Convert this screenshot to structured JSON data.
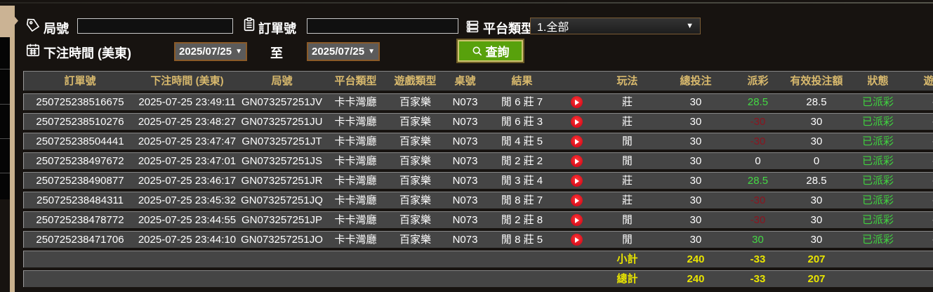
{
  "topbar": {
    "round_label": "局號",
    "round_value": "",
    "order_label": "訂單號",
    "order_value": "",
    "platform_label": "平台類型",
    "platform_selected": "1.全部",
    "bet_time_label": "下注時間 (美東)",
    "date_from": "2025/07/25",
    "to_label": "至",
    "date_to": "2025/07/25",
    "query_label": "查詢"
  },
  "table": {
    "headers": [
      "訂單號",
      "下注時間 (美東)",
      "局號",
      "平台類型",
      "遊戲類型",
      "桌號",
      "結果",
      "",
      "玩法",
      "總投注",
      "派彩",
      "有效投注額",
      "狀態",
      "遊戲"
    ],
    "rows": [
      {
        "order_no": "250725238516675",
        "bet_time": "2025-07-25 23:49:11",
        "round_no": "GN073257251JV",
        "platform": "卡卡灣廳",
        "game_type": "百家樂",
        "table_no": "N073",
        "result": "閒 6 莊 7",
        "bet_side": "莊",
        "total_bet": "30",
        "payout": "28.5",
        "payout_state": "win",
        "valid_bet": "28.5",
        "status": "已派彩",
        "game_extra": "-"
      },
      {
        "order_no": "250725238510276",
        "bet_time": "2025-07-25 23:48:27",
        "round_no": "GN073257251JU",
        "platform": "卡卡灣廳",
        "game_type": "百家樂",
        "table_no": "N073",
        "result": "閒 6 莊 3",
        "bet_side": "莊",
        "total_bet": "30",
        "payout": "-30",
        "payout_state": "loss",
        "valid_bet": "30",
        "status": "已派彩",
        "game_extra": "-"
      },
      {
        "order_no": "250725238504441",
        "bet_time": "2025-07-25 23:47:47",
        "round_no": "GN073257251JT",
        "platform": "卡卡灣廳",
        "game_type": "百家樂",
        "table_no": "N073",
        "result": "閒 4 莊 5",
        "bet_side": "閒",
        "total_bet": "30",
        "payout": "-30",
        "payout_state": "loss",
        "valid_bet": "30",
        "status": "已派彩",
        "game_extra": "-"
      },
      {
        "order_no": "250725238497672",
        "bet_time": "2025-07-25 23:47:01",
        "round_no": "GN073257251JS",
        "platform": "卡卡灣廳",
        "game_type": "百家樂",
        "table_no": "N073",
        "result": "閒 2 莊 2",
        "bet_side": "閒",
        "total_bet": "30",
        "payout": "0",
        "payout_state": "zero",
        "valid_bet": "0",
        "status": "已派彩",
        "game_extra": "-"
      },
      {
        "order_no": "250725238490877",
        "bet_time": "2025-07-25 23:46:17",
        "round_no": "GN073257251JR",
        "platform": "卡卡灣廳",
        "game_type": "百家樂",
        "table_no": "N073",
        "result": "閒 3 莊 4",
        "bet_side": "莊",
        "total_bet": "30",
        "payout": "28.5",
        "payout_state": "win",
        "valid_bet": "28.5",
        "status": "已派彩",
        "game_extra": "-"
      },
      {
        "order_no": "250725238484311",
        "bet_time": "2025-07-25 23:45:32",
        "round_no": "GN073257251JQ",
        "platform": "卡卡灣廳",
        "game_type": "百家樂",
        "table_no": "N073",
        "result": "閒 8 莊 7",
        "bet_side": "莊",
        "total_bet": "30",
        "payout": "-30",
        "payout_state": "loss",
        "valid_bet": "30",
        "status": "已派彩",
        "game_extra": "-"
      },
      {
        "order_no": "250725238478772",
        "bet_time": "2025-07-25 23:44:55",
        "round_no": "GN073257251JP",
        "platform": "卡卡灣廳",
        "game_type": "百家樂",
        "table_no": "N073",
        "result": "閒 2 莊 8",
        "bet_side": "閒",
        "total_bet": "30",
        "payout": "-30",
        "payout_state": "loss",
        "valid_bet": "30",
        "status": "已派彩",
        "game_extra": "-"
      },
      {
        "order_no": "250725238471706",
        "bet_time": "2025-07-25 23:44:10",
        "round_no": "GN073257251JO",
        "platform": "卡卡灣廳",
        "game_type": "百家樂",
        "table_no": "N073",
        "result": "閒 8 莊 5",
        "bet_side": "閒",
        "total_bet": "30",
        "payout": "30",
        "payout_state": "win",
        "valid_bet": "30",
        "status": "已派彩",
        "game_extra": "-"
      }
    ],
    "subtotal_row": {
      "label": "小計",
      "total_bet": "240",
      "payout": "-33",
      "valid_bet": "207"
    },
    "total_row": {
      "label": "總計",
      "total_bet": "240",
      "payout": "-33",
      "valid_bet": "207"
    }
  },
  "colors": {
    "header_text": "#d8b96d",
    "payout_win": "#43d943",
    "payout_loss": "#8a1620",
    "status_paid": "#3fd23f",
    "totals_yellow": "#e8e400",
    "query_button_green": "#58a10c",
    "ribbon_tan": "#c9b18e",
    "row_bg": "#454545"
  }
}
